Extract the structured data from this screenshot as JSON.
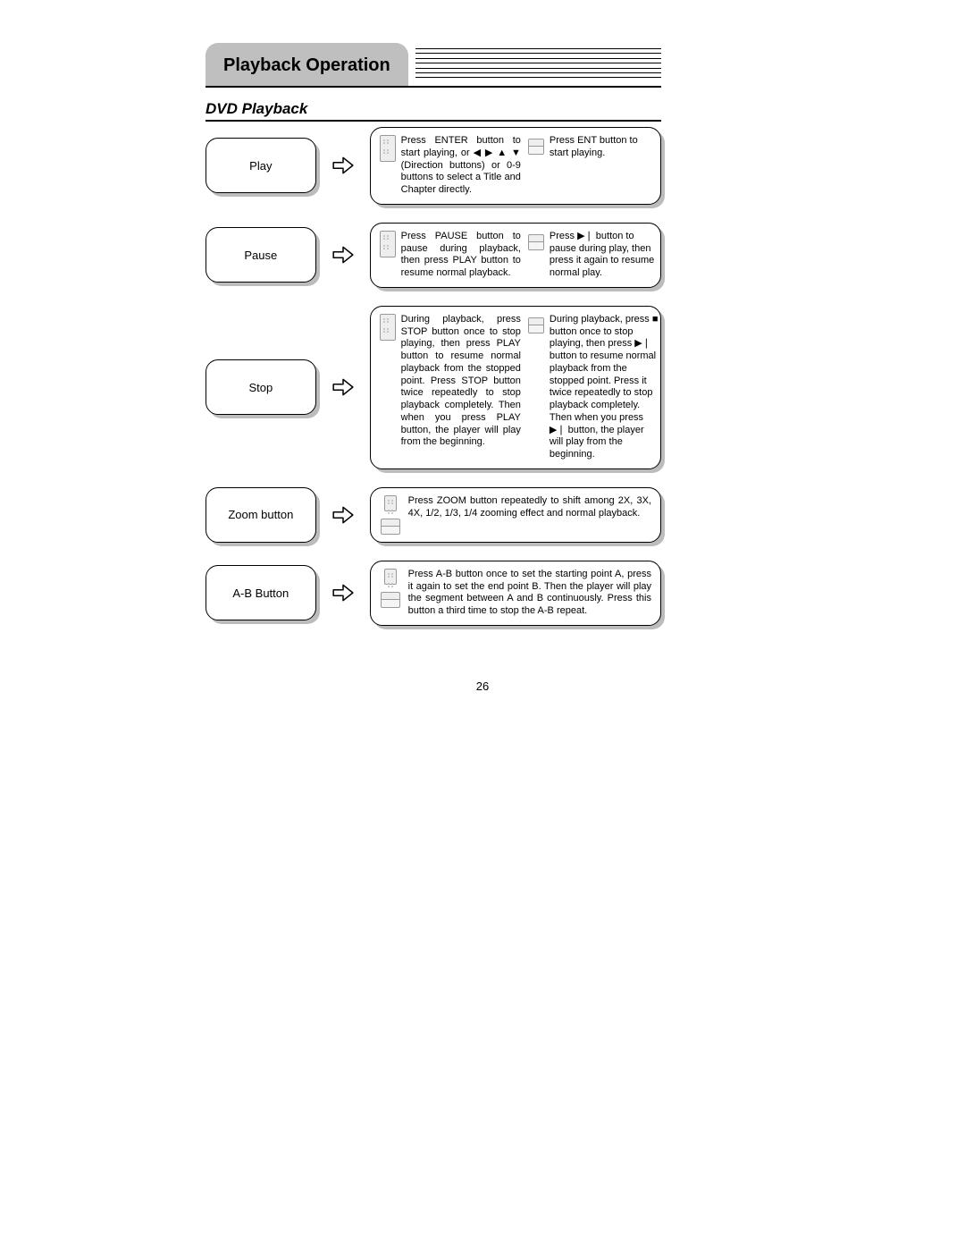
{
  "header": {
    "title": "Playback Operation"
  },
  "section": {
    "heading": "DVD Playback"
  },
  "pageNumber": "26",
  "rows": [
    {
      "label": "Play",
      "layout": "two-col",
      "left": "Press ENTER button to start playing, or ◀ ▶ ▲ ▼ (Direction buttons) or 0-9 buttons to select a Title and Chapter directly.",
      "right": "Press ENT button to start playing."
    },
    {
      "label": "Pause",
      "layout": "two-col",
      "left": "Press PAUSE button to pause during playback, then press PLAY button to resume normal playback.",
      "right": "Press ▶❘ button to pause during play, then press it again to resume normal play."
    },
    {
      "label": "Stop",
      "layout": "two-col",
      "left": "During playback, press STOP button once to stop playing, then press PLAY button to resume normal playback from the stopped point. Press STOP button twice repeatedly to stop playback completely. Then when you press PLAY button, the player will play from the beginning.",
      "right": "During playback, press ■ button once to stop playing, then press ▶❘ button to resume normal playback from the stopped point. Press it twice repeatedly to stop playback completely. Then when you press ▶❘ button, the player will play from the beginning."
    },
    {
      "label": "Zoom button",
      "layout": "one-col",
      "text": "Press ZOOM button repeatedly to shift among 2X, 3X, 4X, 1/2, 1/3, 1/4 zooming effect and normal playback."
    },
    {
      "label": "A-B Button",
      "layout": "one-col",
      "text": "Press A-B button once to set the starting point A, press it again to set the end point B. Then the player will play the segment between A and B continuously. Press this button a third time to stop the A-B repeat."
    }
  ]
}
